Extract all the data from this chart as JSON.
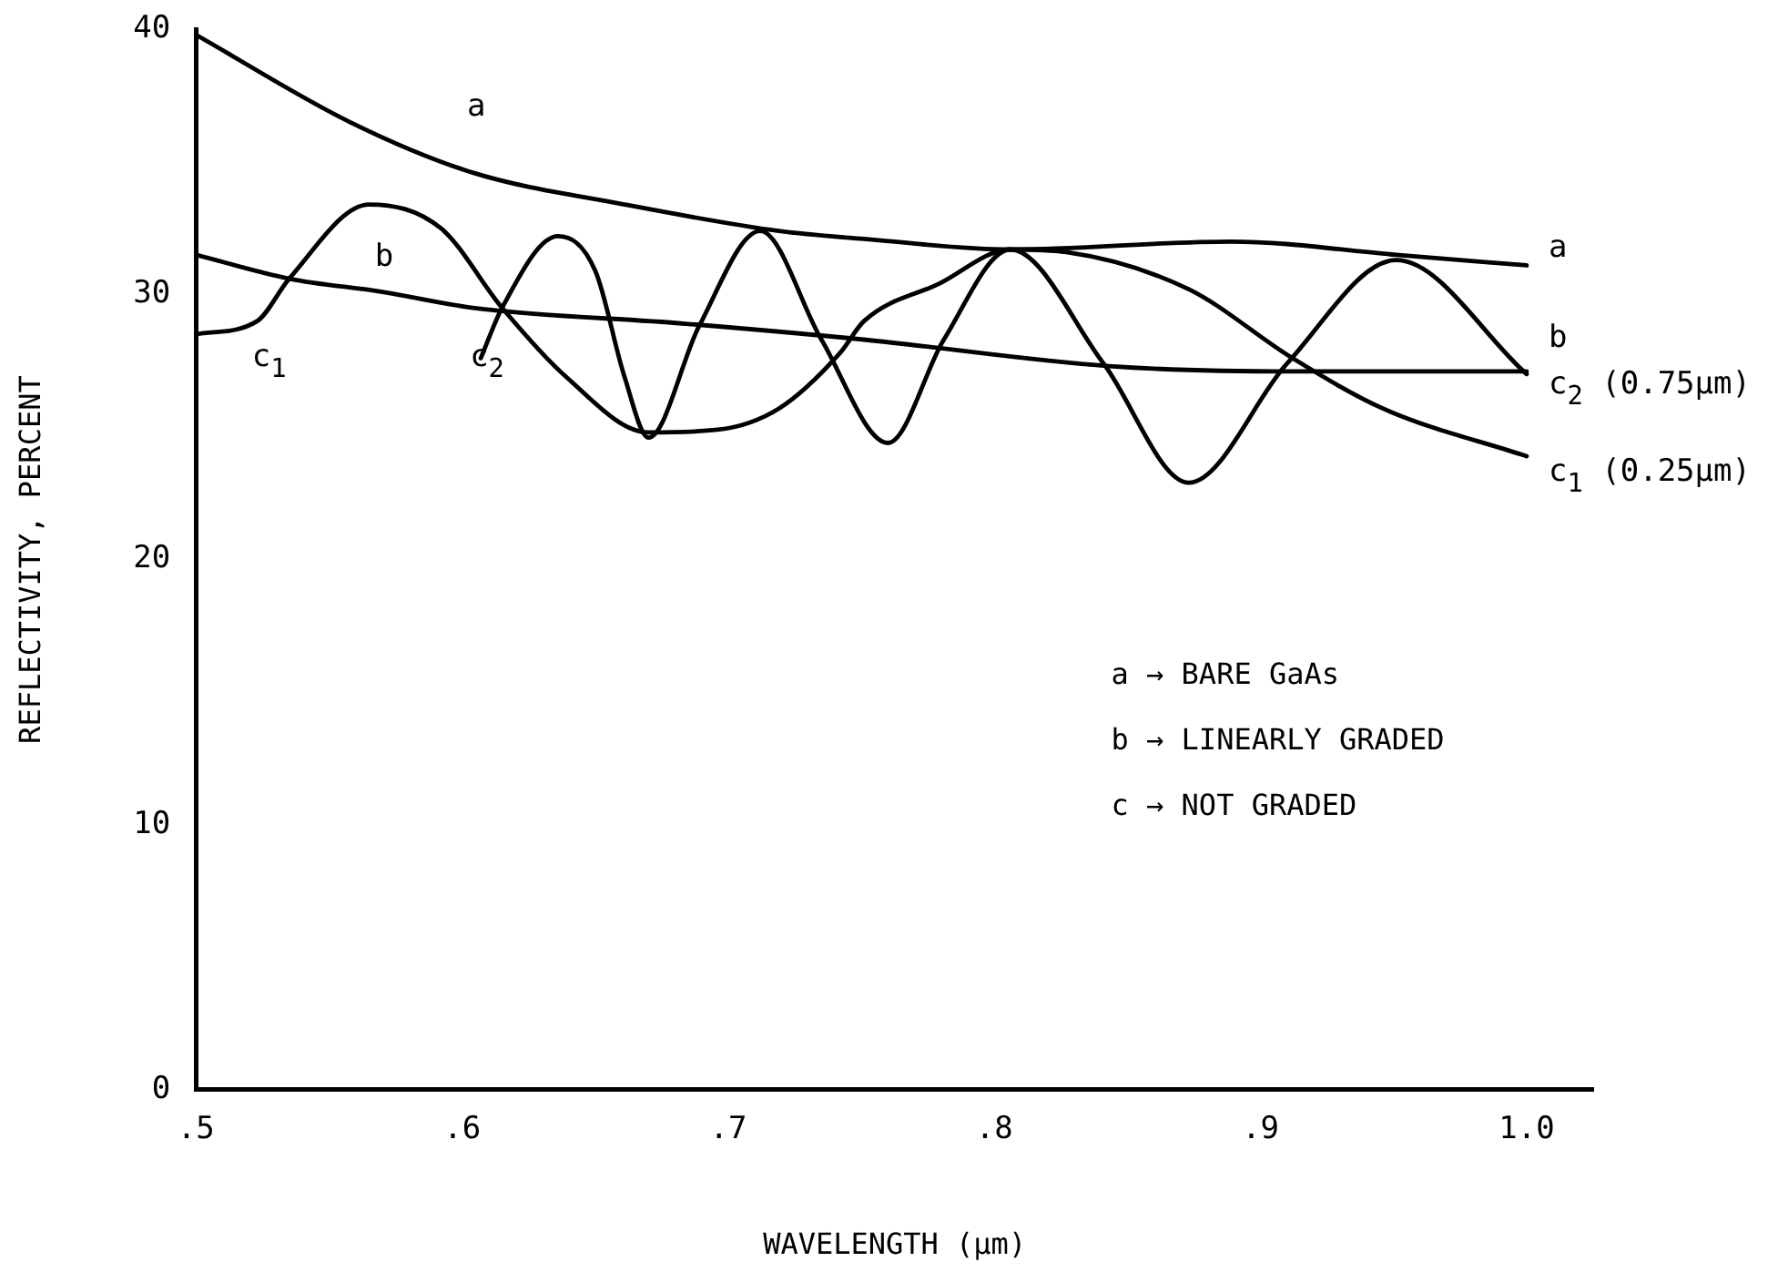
{
  "chart_data": {
    "type": "line",
    "xlabel": "WAVELENGTH (µm)",
    "ylabel": "REFLECTIVITY, PERCENT",
    "xlim": [
      0.5,
      1.025
    ],
    "ylim": [
      0,
      40
    ],
    "xticks": [
      {
        "value": 0.5,
        "label": ".5"
      },
      {
        "value": 0.6,
        "label": ".6"
      },
      {
        "value": 0.7,
        "label": ".7"
      },
      {
        "value": 0.8,
        "label": ".8"
      },
      {
        "value": 0.9,
        "label": ".9"
      },
      {
        "value": 1.0,
        "label": "1.0"
      }
    ],
    "yticks": [
      0,
      10,
      20,
      30,
      40
    ],
    "grid": false,
    "legend": false,
    "marker": "none",
    "line_style": "solid",
    "series": [
      {
        "name": "a",
        "color": "#000000",
        "x": [
          0.5,
          0.558,
          0.604,
          0.661,
          0.719,
          0.751,
          0.806,
          0.889,
          0.951,
          1.0
        ],
        "values": [
          39.8,
          36.5,
          34.6,
          33.4,
          32.4,
          32.1,
          31.7,
          32.0,
          31.5,
          31.1
        ]
      },
      {
        "name": "b",
        "color": "#000000",
        "x": [
          0.5,
          0.535,
          0.57,
          0.604,
          0.684,
          0.751,
          0.843,
          0.912,
          1.0
        ],
        "values": [
          31.5,
          30.6,
          30.1,
          29.5,
          28.9,
          28.3,
          27.3,
          27.1,
          27.1
        ]
      },
      {
        "name": "c$_{1}$ (0.25µm)",
        "color": "#000000",
        "x": [
          0.5,
          0.523,
          0.535,
          0.565,
          0.592,
          0.615,
          0.639,
          0.67,
          0.696,
          0.719,
          0.742,
          0.751,
          0.779,
          0.806,
          0.827,
          0.873,
          0.912,
          0.946,
          1.0
        ],
        "values": [
          28.5,
          29.0,
          30.6,
          33.4,
          32.5,
          29.5,
          26.9,
          24.8,
          24.9,
          25.7,
          27.8,
          29.0,
          30.4,
          31.7,
          31.6,
          30.2,
          27.6,
          25.7,
          23.9
        ]
      },
      {
        "name": "c$_{2}$ (0.75µm)",
        "color": "#000000",
        "x": [
          0.607,
          0.615,
          0.636,
          0.65,
          0.661,
          0.67,
          0.689,
          0.712,
          0.735,
          0.76,
          0.781,
          0.806,
          0.841,
          0.873,
          0.91,
          0.951,
          1.0
        ],
        "values": [
          27.6,
          29.5,
          32.2,
          30.9,
          26.9,
          24.6,
          28.8,
          32.4,
          28.3,
          24.4,
          28.3,
          31.7,
          27.4,
          22.9,
          27.4,
          31.3,
          27.0
        ]
      }
    ],
    "annotations": [
      "a",
      "b",
      "c$_{1}$",
      "c$_{2}$",
      "a → BARE GaAs",
      "b → LINEARLY GRADED",
      "c → NOT GRADED"
    ]
  }
}
